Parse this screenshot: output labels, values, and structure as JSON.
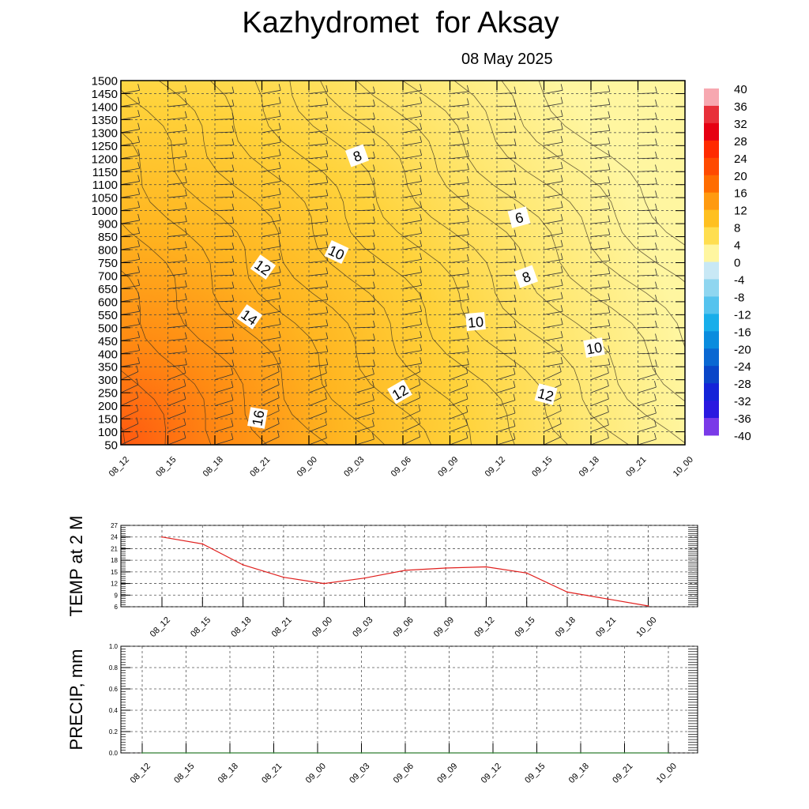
{
  "title": "Kazhydromet  for Aksay",
  "subtitle": "08 May 2025",
  "colors": {
    "temp_line": "#e0201e",
    "precip_line": "#2e7d32",
    "grid": "#555555"
  },
  "chart_data": [
    {
      "type": "heatmap",
      "name": "temperature-height",
      "x_labels": [
        "08_12",
        "08_15",
        "08_18",
        "08_21",
        "09_00",
        "09_03",
        "09_06",
        "09_09",
        "09_12",
        "09_15",
        "09_18",
        "09_21",
        "10_00"
      ],
      "y_labels": [
        50,
        100,
        150,
        200,
        250,
        300,
        350,
        400,
        450,
        500,
        550,
        600,
        650,
        700,
        750,
        800,
        850,
        900,
        1000,
        1050,
        1100,
        1150,
        1200,
        1250,
        1300,
        1350,
        1400,
        1450,
        1500
      ],
      "contour_labels": [
        "8",
        "6",
        "10",
        "12",
        "8",
        "14",
        "10",
        "10",
        "12",
        "12",
        "16"
      ],
      "colorbar": {
        "labels": [
          "40",
          "36",
          "32",
          "28",
          "24",
          "20",
          "16",
          "12",
          "8",
          "4",
          "0",
          "-4",
          "-8",
          "-12",
          "-16",
          "-20",
          "-24",
          "-28",
          "-32",
          "-36",
          "-40"
        ],
        "range": [
          -40,
          40
        ]
      },
      "wind_barbs": true,
      "grid": true
    },
    {
      "type": "line",
      "name": "temp-2m",
      "ylabel": "TEMP at 2 M",
      "categories": [
        "08_12",
        "08_15",
        "08_18",
        "08_21",
        "09_00",
        "09_03",
        "09_06",
        "09_09",
        "09_12",
        "09_15",
        "09_18",
        "09_21",
        "10_00"
      ],
      "values": [
        24,
        22.2,
        16.8,
        13.6,
        12,
        13.4,
        15.4,
        16,
        16.3,
        14.7,
        9.8,
        8,
        6.2
      ],
      "yticks": [
        "6",
        "9",
        "12",
        "15",
        "18",
        "21",
        "24",
        "27"
      ],
      "ylim": [
        6,
        27
      ],
      "grid": true
    },
    {
      "type": "line",
      "name": "precip",
      "ylabel": "PRECIP, mm",
      "categories": [
        "08_12",
        "08_15",
        "08_18",
        "08_21",
        "09_00",
        "09_03",
        "09_06",
        "09_09",
        "09_12",
        "09_15",
        "09_18",
        "09_21",
        "10_00"
      ],
      "values": [
        0,
        0,
        0,
        0,
        0,
        0,
        0,
        0,
        0,
        0,
        0,
        0,
        0
      ],
      "yticks": [
        "0.0",
        "0.2",
        "0.4",
        "0.6",
        "0.8",
        "1.0"
      ],
      "ylim": [
        0,
        1
      ],
      "grid": true
    }
  ]
}
